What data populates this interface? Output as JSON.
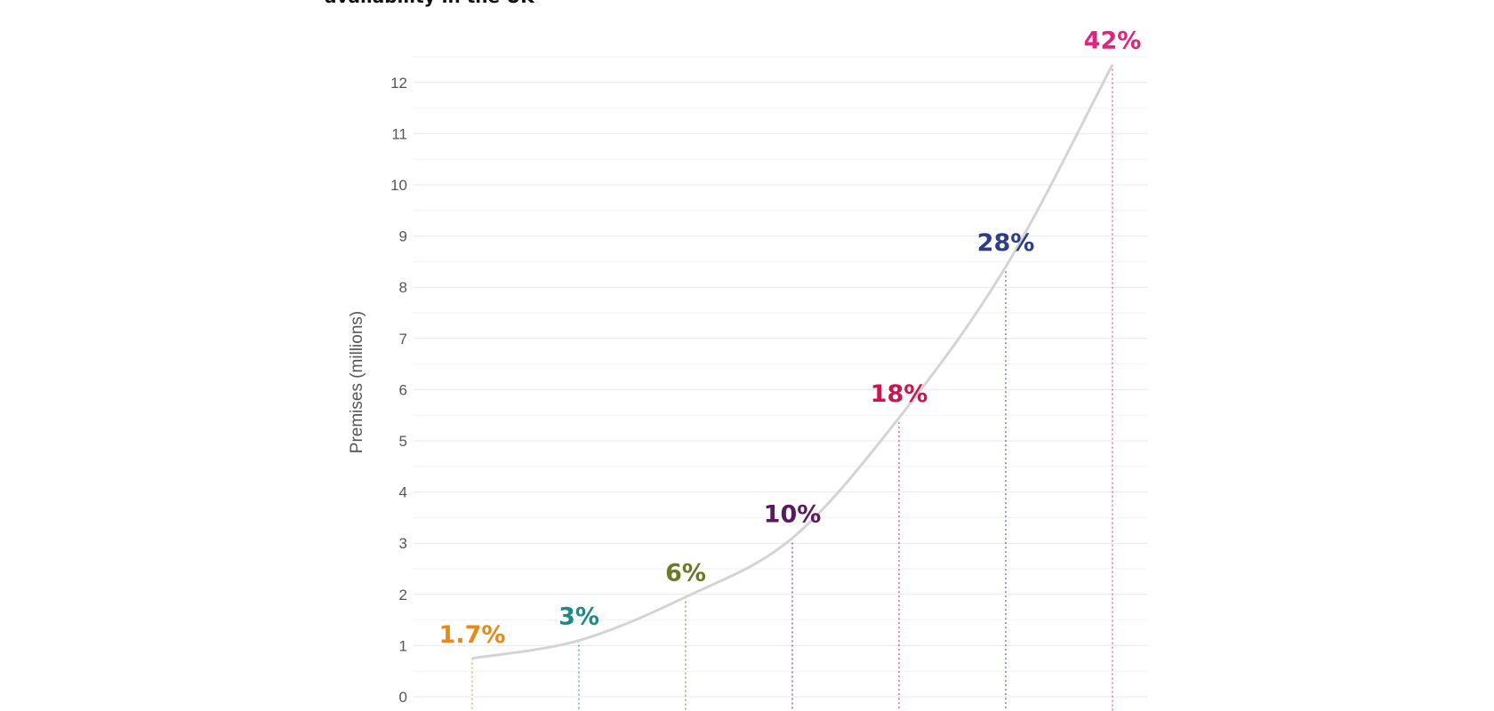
{
  "chart_data": {
    "type": "line",
    "title": "availability in the UK",
    "ylabel": "Premises (millions)",
    "xlabel": "",
    "ylim": [
      0,
      12
    ],
    "yticks": [
      0,
      1,
      2,
      3,
      4,
      5,
      6,
      7,
      8,
      9,
      10,
      11,
      12
    ],
    "grid": true,
    "values": [
      0.75,
      1.1,
      1.95,
      3.1,
      5.45,
      8.4,
      12.35
    ],
    "labels": [
      "1.7%",
      "3%",
      "6%",
      "10%",
      "18%",
      "28%",
      "42%"
    ],
    "colors": [
      "#e88a1a",
      "#1d8a8a",
      "#6b7a24",
      "#5a1a5e",
      "#c8174f",
      "#2d3e86",
      "#e2237d"
    ],
    "line_color": "#d4d4d4"
  }
}
